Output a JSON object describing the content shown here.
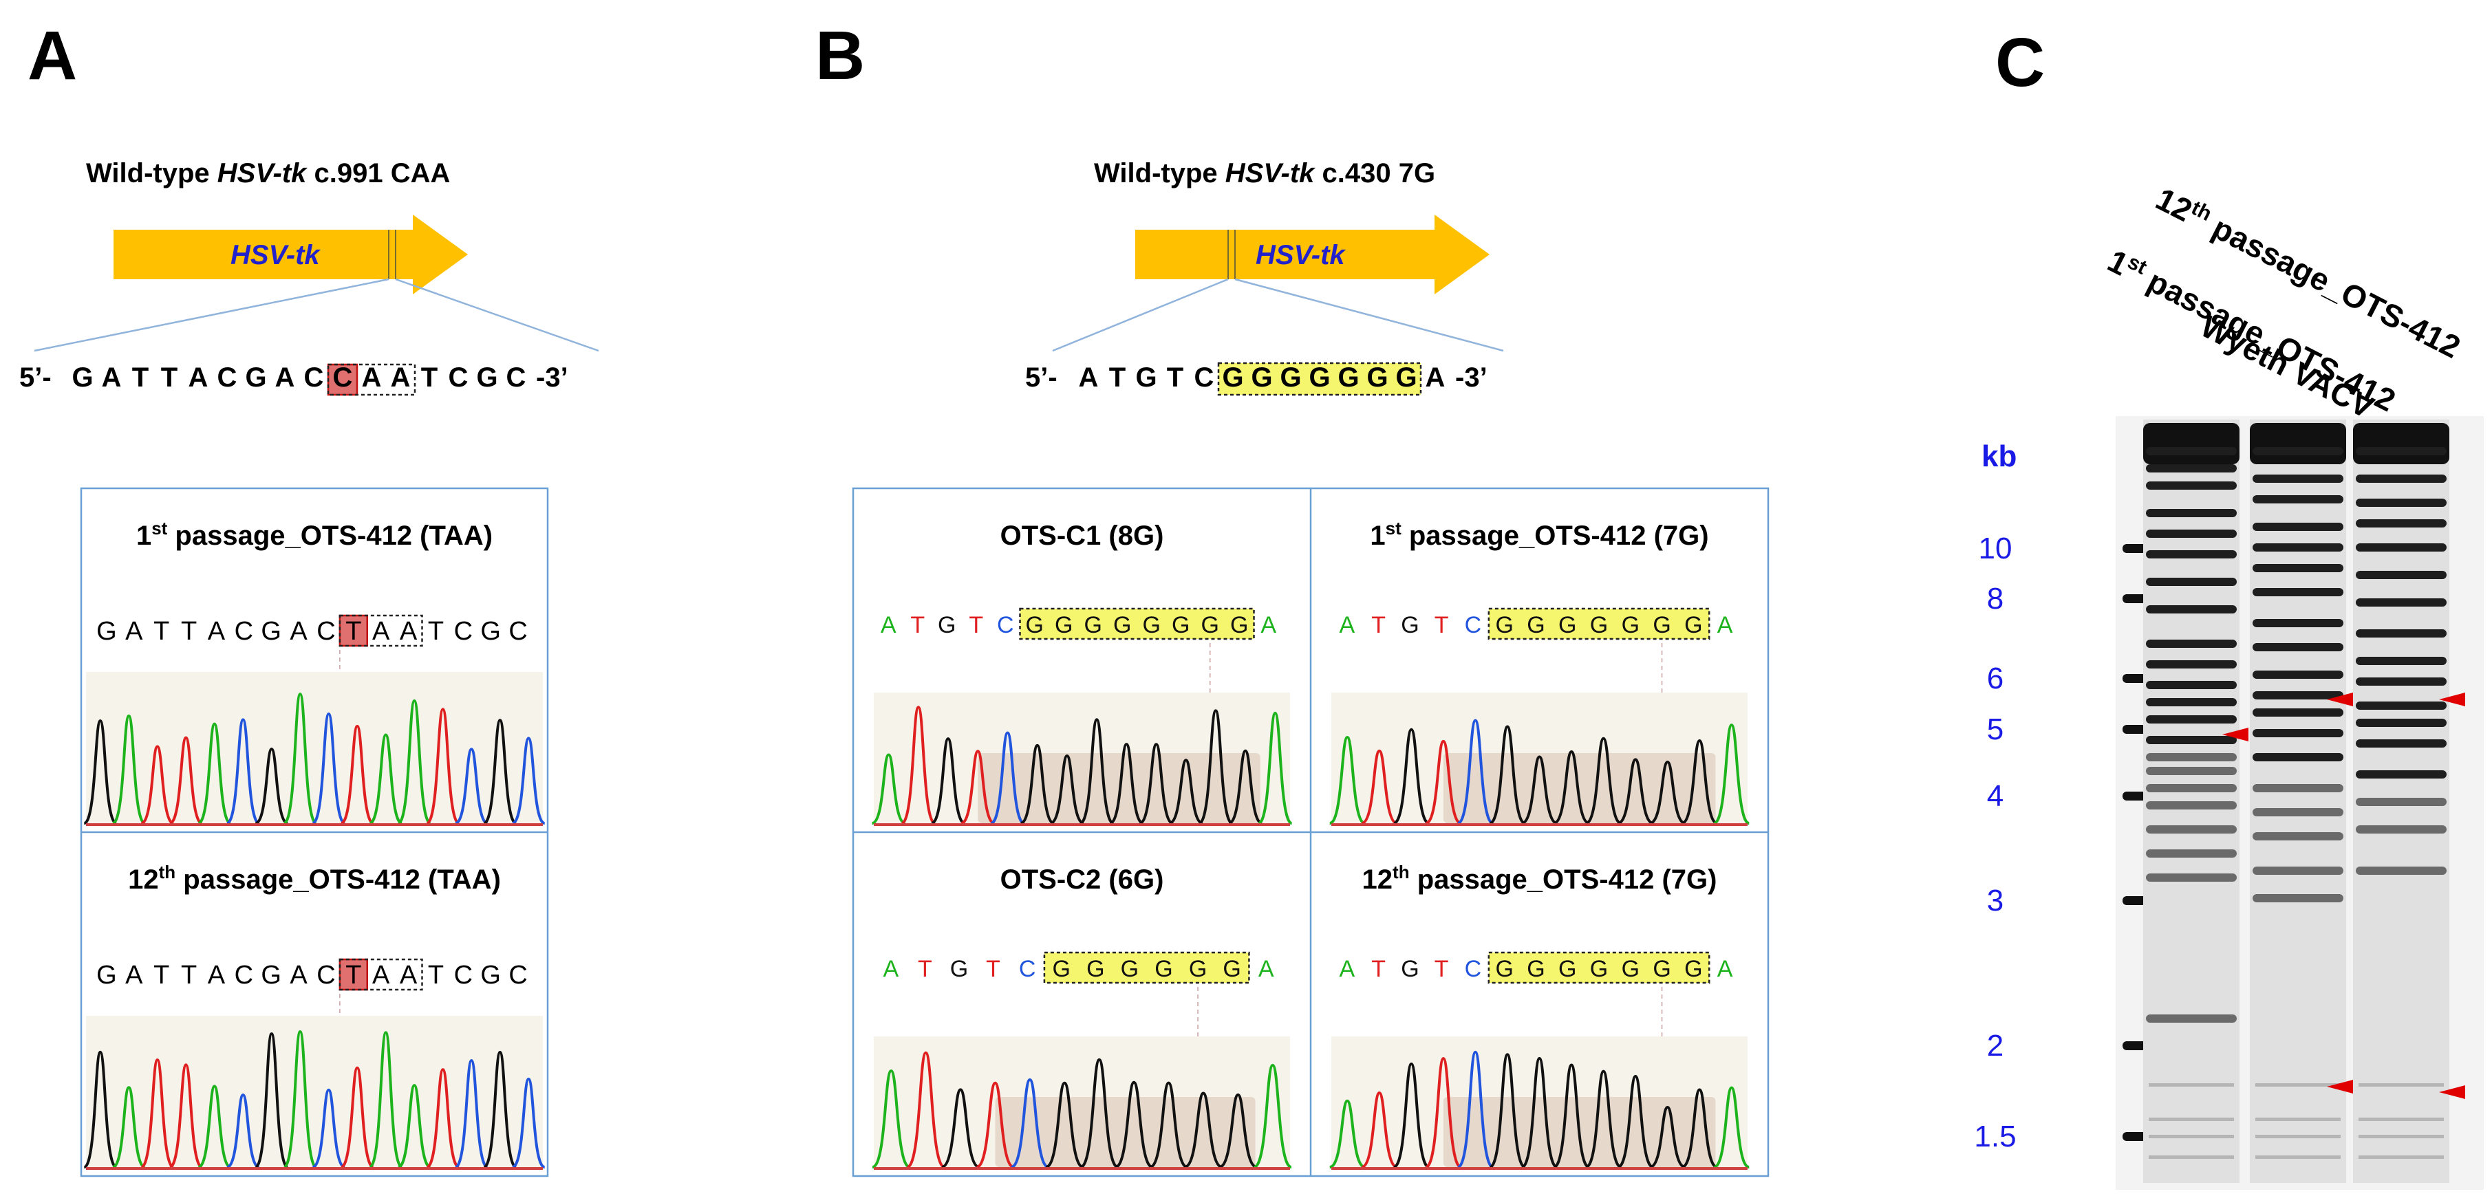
{
  "panels": {
    "a": {
      "letter": "A",
      "header": {
        "prefix": "Wild-type ",
        "gene": "HSV-tk",
        "suffix": " c.991  CAA"
      },
      "arrow_label": "HSV-tk",
      "sequence": {
        "prefix": "5’-",
        "bases": [
          "G",
          "A",
          "T",
          "T",
          "A",
          "C",
          "G",
          "A",
          "C",
          "C",
          "A",
          "A",
          "T",
          "C",
          "G",
          "C"
        ],
        "suffix": "-3’"
      },
      "traces": [
        {
          "title_pre": "1",
          "title_sup": "st",
          "title_post": " passage_OTS-412 (TAA)",
          "bases": [
            "G",
            "A",
            "T",
            "T",
            "A",
            "C",
            "G",
            "A",
            "C",
            "T",
            "A",
            "A",
            "T",
            "C",
            "G",
            "C"
          ]
        },
        {
          "title_pre": "12",
          "title_sup": "th",
          "title_post": " passage_OTS-412 (TAA)",
          "bases": [
            "G",
            "A",
            "T",
            "T",
            "A",
            "C",
            "G",
            "A",
            "C",
            "T",
            "A",
            "A",
            "T",
            "C",
            "G",
            "C"
          ]
        }
      ]
    },
    "b": {
      "letter": "B",
      "header": {
        "prefix": "Wild-type ",
        "gene": "HSV-tk",
        "suffix": " c.430  7G"
      },
      "arrow_label": "HSV-tk",
      "sequence": {
        "prefix": "5’-",
        "bases": [
          "A",
          "T",
          "G",
          "T",
          "C",
          "G",
          "G",
          "G",
          "G",
          "G",
          "G",
          "G",
          "A"
        ],
        "suffix": "-3’"
      },
      "traces": [
        {
          "title_pre": "OTS-C1 (8G)",
          "title_sup": "",
          "title_post": "",
          "bases": [
            "A",
            "T",
            "G",
            "T",
            "C",
            "G",
            "G",
            "G",
            "G",
            "G",
            "G",
            "G",
            "G",
            "A"
          ]
        },
        {
          "title_pre": "1",
          "title_sup": "st",
          "title_post": " passage_OTS-412 (7G)",
          "bases": [
            "A",
            "T",
            "G",
            "T",
            "C",
            "G",
            "G",
            "G",
            "G",
            "G",
            "G",
            "G",
            "A"
          ]
        },
        {
          "title_pre": "OTS-C2 (6G)",
          "title_sup": "",
          "title_post": "",
          "bases": [
            "A",
            "T",
            "G",
            "T",
            "C",
            "G",
            "G",
            "G",
            "G",
            "G",
            "G",
            "A"
          ]
        },
        {
          "title_pre": "12",
          "title_sup": "th",
          "title_post": " passage_OTS-412 (7G)",
          "bases": [
            "A",
            "T",
            "G",
            "T",
            "C",
            "G",
            "G",
            "G",
            "G",
            "G",
            "G",
            "G",
            "A"
          ]
        }
      ]
    },
    "c": {
      "letter": "C",
      "lane_labels": [
        {
          "pre": "Wyeth VACV",
          "sup": "",
          "post": ""
        },
        {
          "pre": "1",
          "sup": "st",
          "post": " passage_OTS-412"
        },
        {
          "pre": "12",
          "sup": "th",
          "post": " passage_OTS-412"
        }
      ],
      "unit_label": "kb",
      "ladder_labels": [
        "10",
        "8",
        "6",
        "5",
        "4",
        "3",
        "2",
        "1.5"
      ]
    }
  },
  "colors": {
    "A": "#1db31d",
    "C": "#2255dd",
    "G": "#111111",
    "T": "#e02020",
    "arrow": "#ffc000",
    "frame": "#6a9fd4",
    "kb_label": "#1a1ae6",
    "highlight_red": "#e07070",
    "highlight_yellow": "#f5f56e",
    "marker": "#e00000"
  }
}
